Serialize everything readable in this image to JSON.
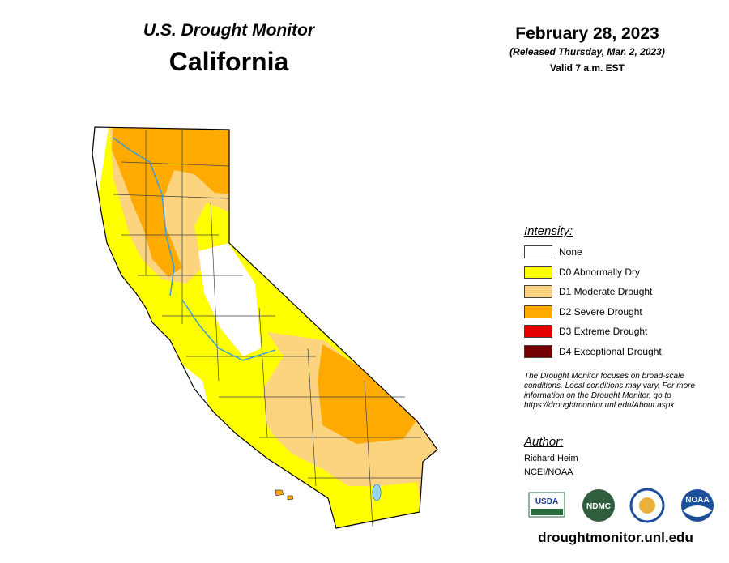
{
  "header": {
    "subtitle": "U.S. Drought Monitor",
    "title": "California",
    "date": "February 28, 2023",
    "released": "(Released Thursday, Mar. 2, 2023)",
    "valid": "Valid 7 a.m. EST"
  },
  "legend": {
    "title": "Intensity:",
    "items": [
      {
        "label": "None",
        "color": "#ffffff"
      },
      {
        "label": "D0 Abnormally Dry",
        "color": "#ffff00"
      },
      {
        "label": "D1 Moderate Drought",
        "color": "#fcd37f"
      },
      {
        "label": "D2 Severe Drought",
        "color": "#ffaa00"
      },
      {
        "label": "D3 Extreme Drought",
        "color": "#e60000"
      },
      {
        "label": "D4 Exceptional Drought",
        "color": "#730000"
      }
    ]
  },
  "note": "The Drought Monitor focuses on broad-scale conditions. Local conditions may vary. For more information on the Drought Monitor, go to https://droughtmonitor.unl.edu/About.aspx",
  "author": {
    "title": "Author:",
    "name": "Richard Heim",
    "org": "NCEI/NOAA"
  },
  "logos": [
    "USDA",
    "NDMC",
    "NOAA"
  ],
  "url": "droughtmonitor.unl.edu"
}
